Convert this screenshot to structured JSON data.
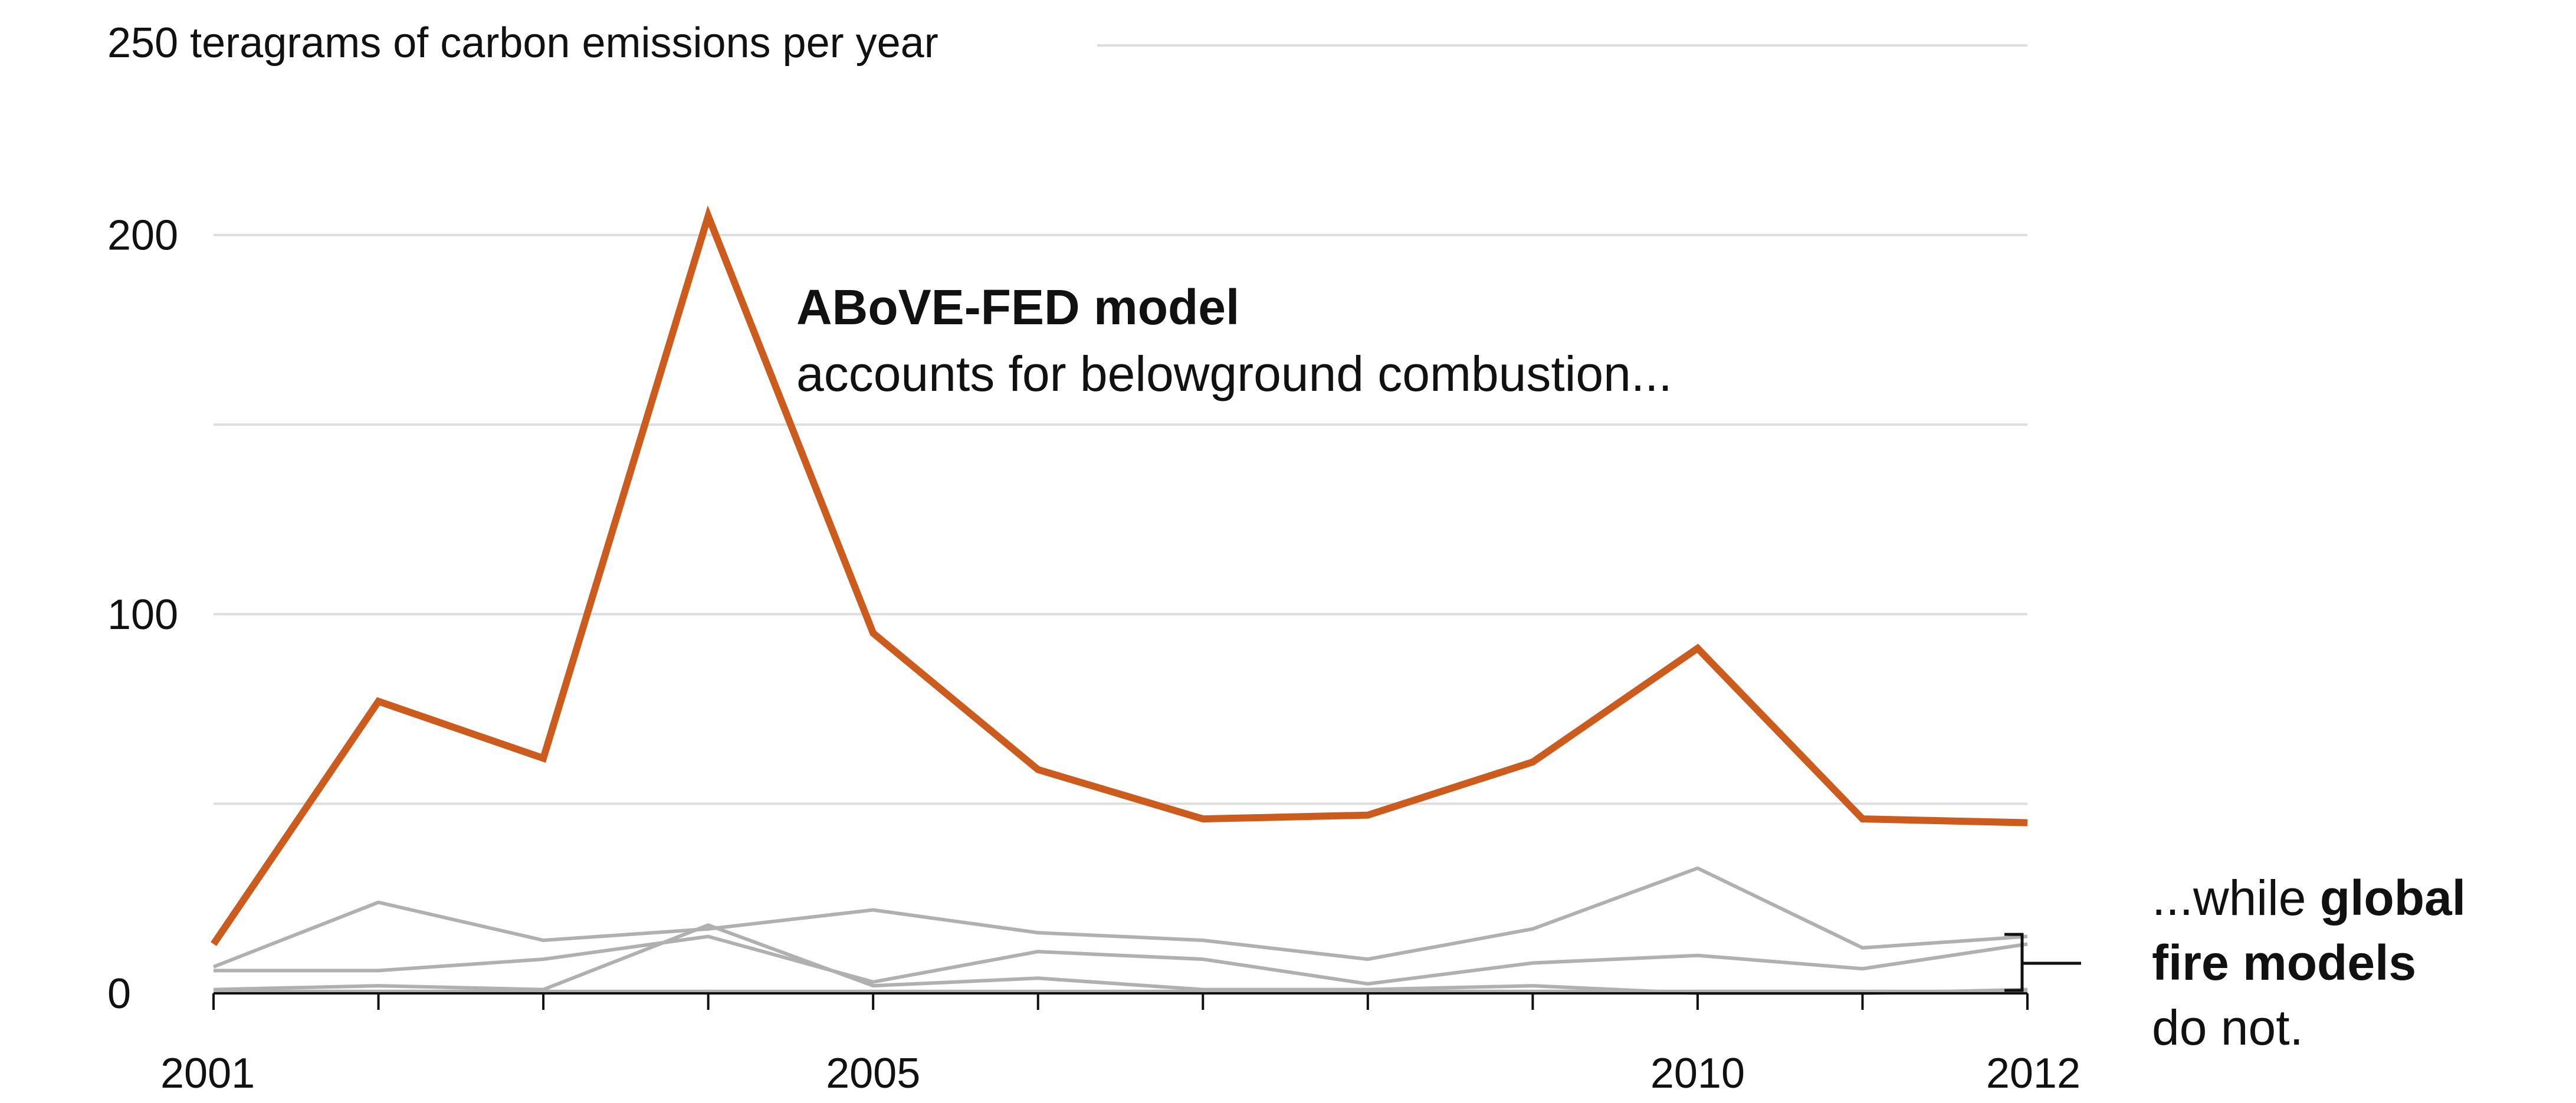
{
  "chart_data": {
    "type": "line",
    "ylabel": "250 teragrams of carbon emissions per year",
    "ylim": [
      0,
      250
    ],
    "yticks": [
      {
        "value": 0,
        "label": "0"
      },
      {
        "value": 50,
        "label": ""
      },
      {
        "value": 100,
        "label": "100"
      },
      {
        "value": 150,
        "label": ""
      },
      {
        "value": 200,
        "label": "200"
      },
      {
        "value": 250,
        "label": ""
      }
    ],
    "xlim": [
      2001,
      2012
    ],
    "x": [
      2001,
      2002,
      2003,
      2004,
      2005,
      2006,
      2007,
      2008,
      2009,
      2010,
      2011,
      2012
    ],
    "xticks": [
      {
        "value": 2001,
        "label": "2001"
      },
      {
        "value": 2005,
        "label": "2005"
      },
      {
        "value": 2010,
        "label": "2010"
      },
      {
        "value": 2012,
        "label": "2012"
      }
    ],
    "grid": true,
    "series": [
      {
        "name": "",
        "color": "#b0b0b0",
        "values": [
          7,
          24,
          14,
          17,
          22,
          16,
          14,
          9,
          17,
          33,
          12,
          15
        ]
      },
      {
        "name": "",
        "color": "#b0b0b0",
        "values": [
          6,
          6,
          9,
          15,
          3,
          11,
          9,
          2.5,
          8,
          10,
          6.5,
          13
        ]
      },
      {
        "name": "",
        "color": "#b0b0b0",
        "values": [
          1,
          2,
          1,
          18,
          2,
          4,
          1,
          1,
          2,
          0,
          0,
          1
        ]
      },
      {
        "name": "",
        "color": "#b0b0b0",
        "values": [
          0.5,
          0.5,
          0.5,
          0.5,
          0.5,
          0.5,
          0.5,
          0.5,
          0.5,
          0.5,
          0.5,
          0.5
        ]
      },
      {
        "name": "",
        "color": "#cc5c1d",
        "values": [
          13,
          77,
          62,
          205,
          95,
          59,
          46,
          47,
          61,
          91,
          46,
          45
        ]
      }
    ],
    "annotations": {
      "highlight_title": "ABoVE-FED model",
      "highlight_text": "accounts for belowground combustion...",
      "note_prefix": "...while ",
      "note_bold_1": "global",
      "note_bold_2": "fire models",
      "note_suffix": "do not."
    }
  }
}
